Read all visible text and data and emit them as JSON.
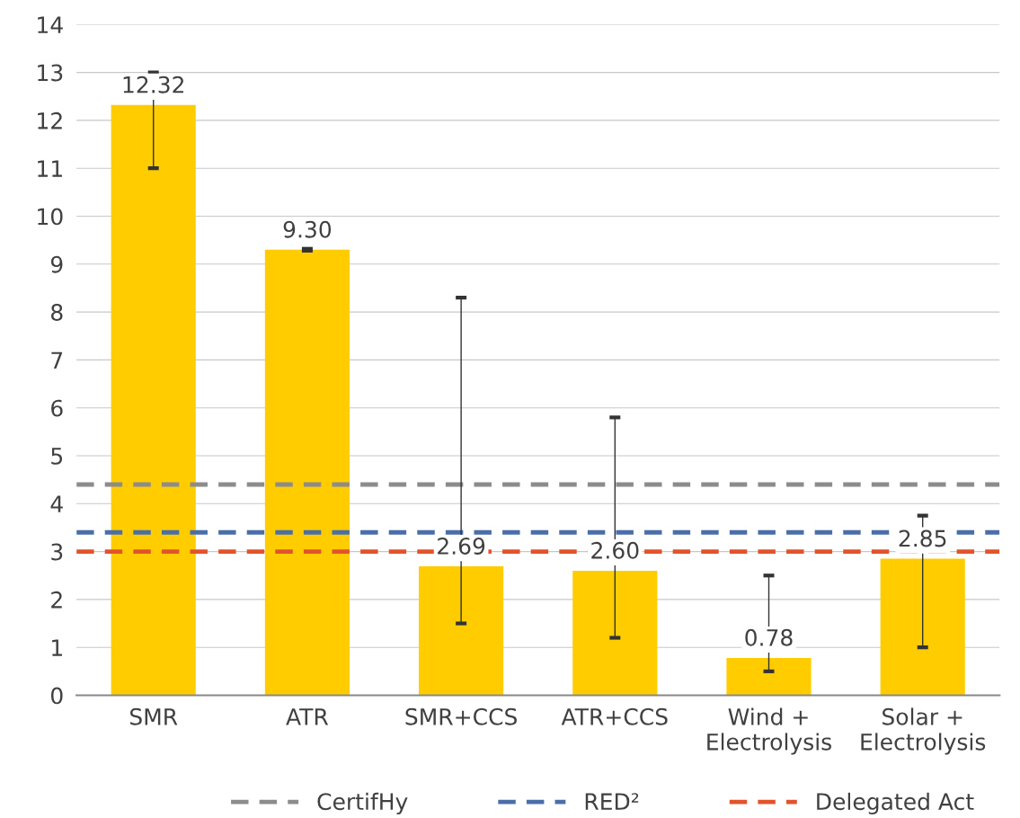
{
  "chart_data": {
    "type": "bar",
    "categories": [
      "SMR",
      "ATR",
      "SMR+CCS",
      "ATR+CCS",
      "Wind +\nElectrolysis",
      "Solar +\nElectrolysis"
    ],
    "values": [
      12.32,
      9.3,
      2.69,
      2.6,
      0.78,
      2.85
    ],
    "value_labels": [
      "12.32",
      "9.30",
      "2.69",
      "2.60",
      "0.78",
      "2.85"
    ],
    "color": "#ffcc00",
    "errors": [
      [
        11.0,
        13.0
      ],
      [
        9.28,
        9.32
      ],
      [
        1.5,
        8.3
      ],
      [
        1.2,
        5.8
      ],
      [
        0.5,
        2.5
      ],
      [
        1.0,
        3.75
      ]
    ],
    "ylim": [
      0,
      14
    ],
    "yticks": [
      0,
      1,
      2,
      3,
      4,
      5,
      6,
      7,
      8,
      9,
      10,
      11,
      12,
      13,
      14
    ],
    "grid": "y",
    "legend": "bottom",
    "ref_lines": [
      {
        "axis": "y",
        "value": 4.4,
        "label": "CertifHy",
        "color": "#8c8c8c",
        "line_style": "dashed"
      },
      {
        "axis": "y",
        "value": 3.4,
        "label": "RED²",
        "color": "#4a6ea8",
        "line_style": "dashed"
      },
      {
        "axis": "y",
        "value": 3.0,
        "label": "Delegated Act",
        "color": "#e2532b",
        "line_style": "dashed"
      }
    ]
  }
}
